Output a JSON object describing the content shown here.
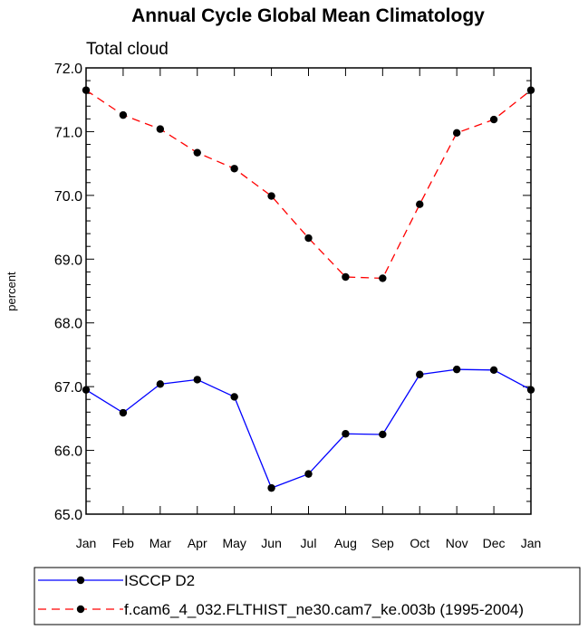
{
  "chart_data": {
    "type": "line",
    "title": "Annual Cycle Global Mean Climatology",
    "subtitle": "Total cloud",
    "ylabel": "percent",
    "xlabel": "",
    "categories": [
      "Jan",
      "Feb",
      "Mar",
      "Apr",
      "May",
      "Jun",
      "Jul",
      "Aug",
      "Sep",
      "Oct",
      "Nov",
      "Dec",
      "Jan"
    ],
    "ylim": [
      65.0,
      72.0
    ],
    "yticks": [
      "65.0",
      "66.0",
      "67.0",
      "68.0",
      "69.0",
      "70.0",
      "71.0",
      "72.0"
    ],
    "series": [
      {
        "name": "ISCCP D2",
        "color": "#0000ff",
        "dash": "solid",
        "values": [
          66.95,
          66.59,
          67.04,
          67.11,
          66.84,
          65.41,
          65.63,
          66.26,
          66.25,
          67.19,
          67.27,
          67.26,
          66.95
        ]
      },
      {
        "name": "f.cam6_4_032.FLTHIST_ne30.cam7_ke.003b (1995-2004)",
        "color": "#ff0000",
        "dash": "dashed",
        "values": [
          71.65,
          71.26,
          71.04,
          70.67,
          70.42,
          69.99,
          69.33,
          68.72,
          68.7,
          69.86,
          70.98,
          71.19,
          71.65
        ]
      }
    ],
    "grid": false,
    "legend_position": "bottom"
  }
}
